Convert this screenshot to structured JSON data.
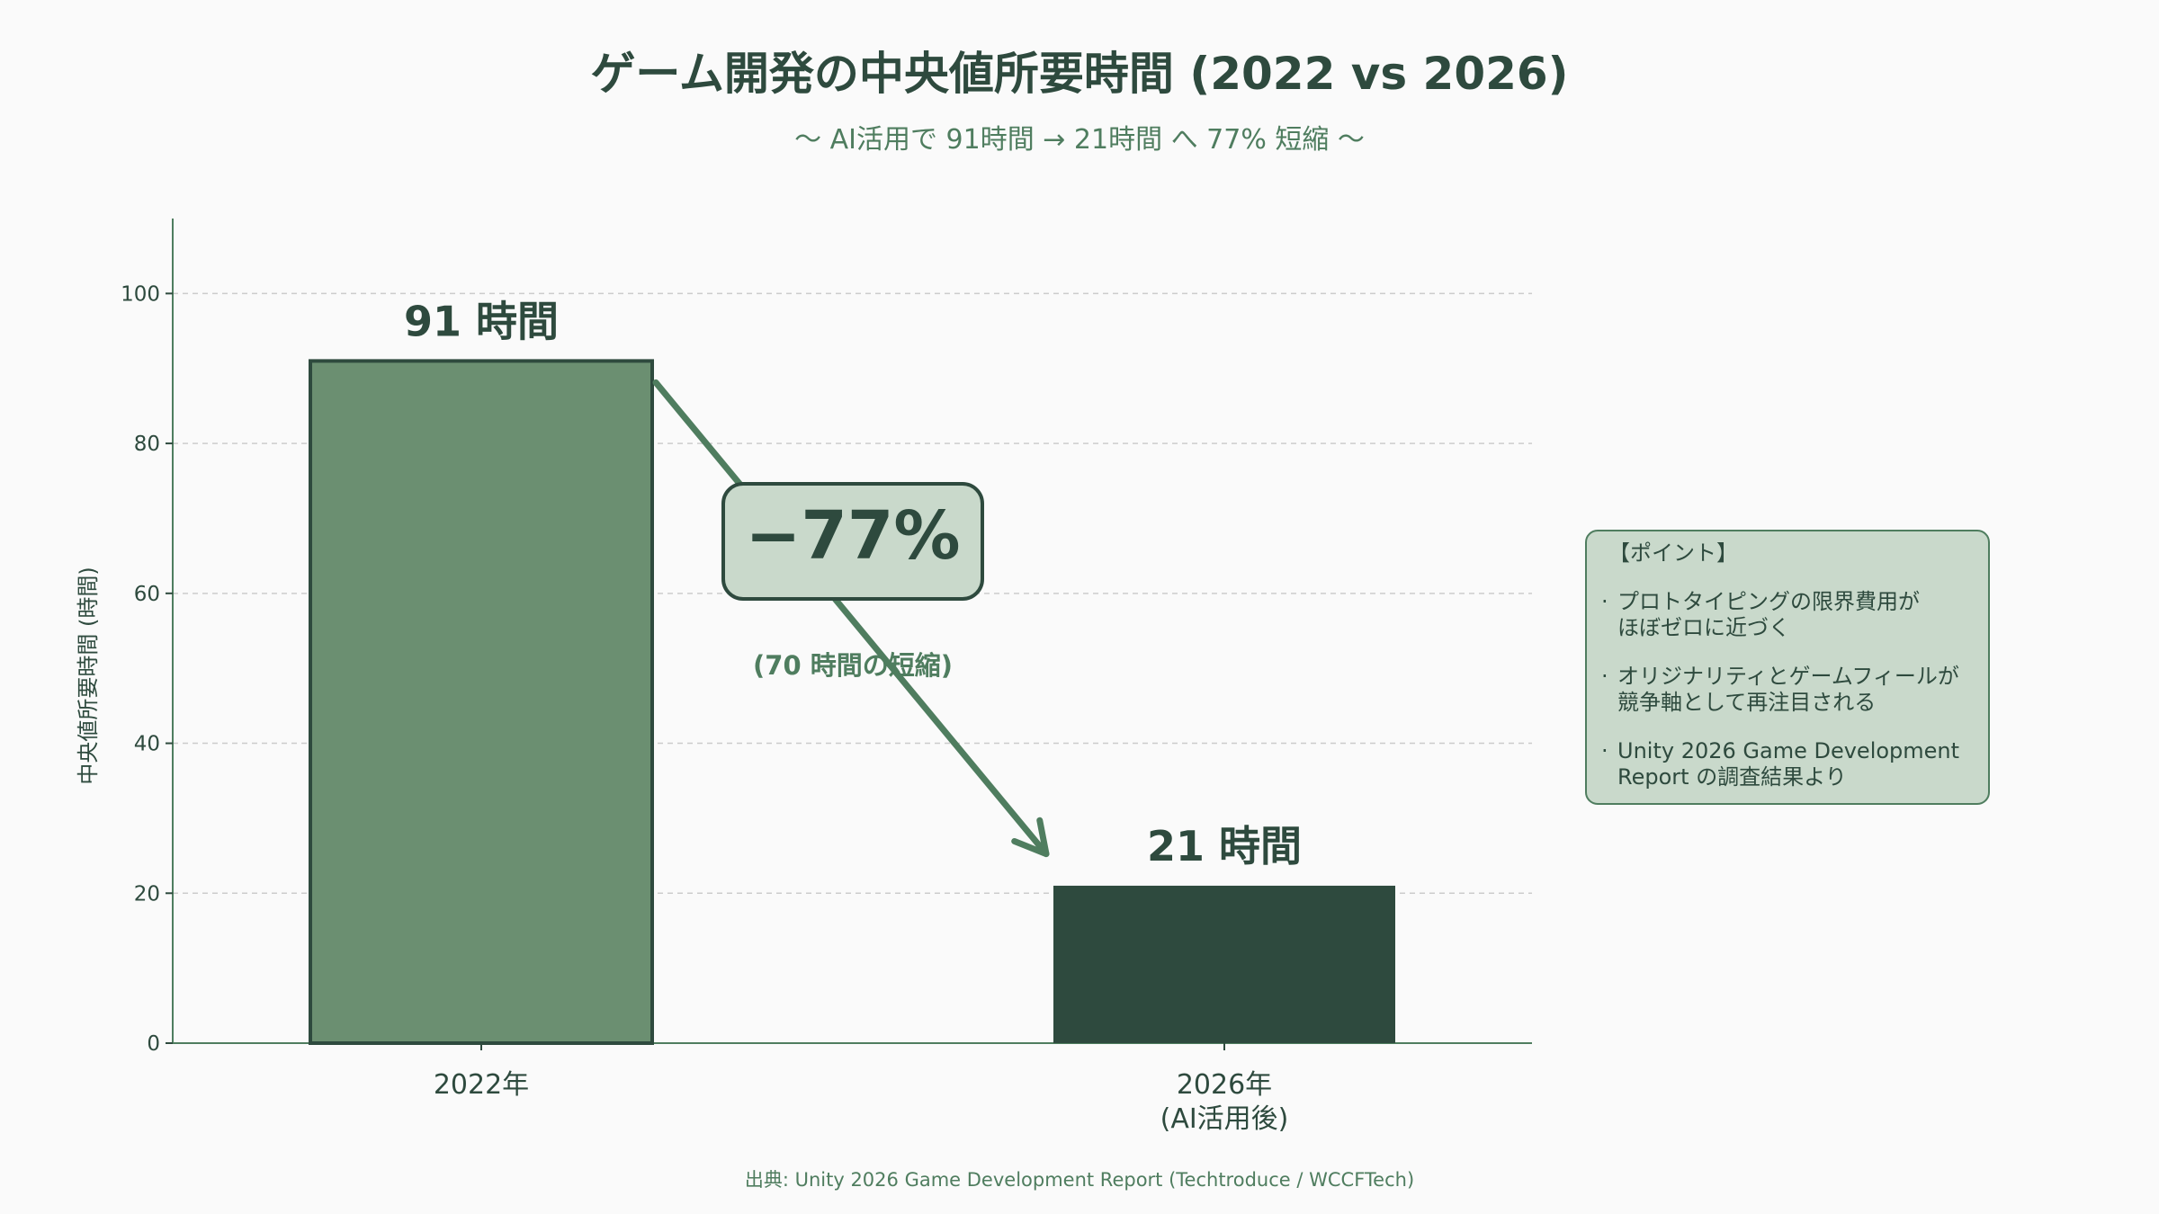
{
  "title": "ゲーム開発の中央値所要時間 (2022 vs 2026)",
  "subtitle": "〜 AI活用で 91時間 → 21時間 へ 77% 短縮 〜",
  "chart_data": {
    "type": "bar",
    "categories": [
      "2022年",
      "2026年\n(AI活用後)"
    ],
    "values": [
      91,
      21
    ],
    "value_labels": [
      "91 時間",
      "21 時間"
    ],
    "bar_colors": [
      "#6b8f71",
      "#2e4a3e"
    ],
    "ylabel": "中央値所要時間 (時間)",
    "xlabel": "",
    "ylim": [
      0,
      110
    ],
    "yticks": [
      0,
      20,
      40,
      60,
      80,
      100
    ],
    "grid": true,
    "annotation": {
      "label": "−77%",
      "sublabel": "(70 時間の短縮)",
      "from": {
        "category": 0,
        "value": 91
      },
      "to": {
        "category": 1,
        "value": 31
      }
    }
  },
  "notes": {
    "heading": "【ポイント】",
    "bullet": "·",
    "items": [
      "プロトタイピングの限界費用が\nほぼゼロに近づく",
      "オリジナリティとゲームフィールが\n競争軸として再注目される",
      "Unity 2026 Game Development\nReport の調査結果より"
    ]
  },
  "source": "出典: Unity 2026 Game Development Report (Techtroduce / WCCFTech)",
  "colors": {
    "dark": "#2e4a3e",
    "medium": "#6b8f71",
    "accent": "#4f7d5f",
    "box_fill": "#c9d9cb",
    "grid": "#cccccc",
    "background": "#fafafa"
  }
}
